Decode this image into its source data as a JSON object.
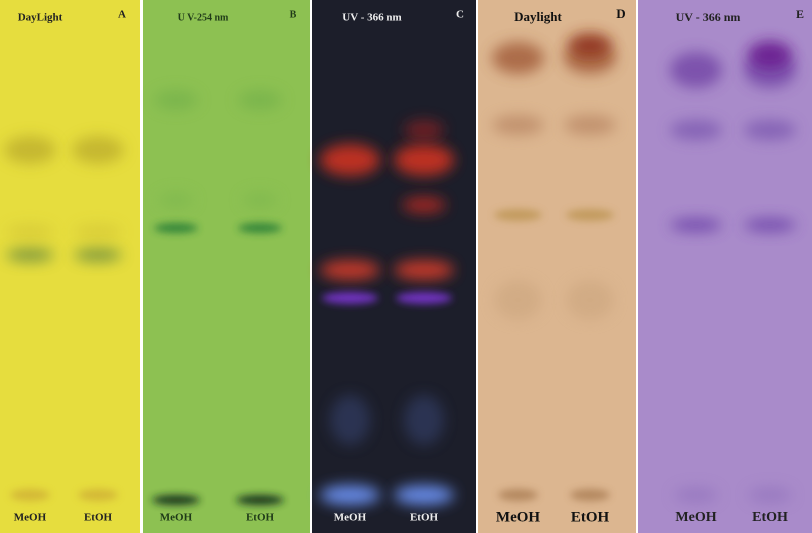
{
  "panels": [
    {
      "title": "DayLight",
      "letter": "A",
      "lanes": [
        "MeOH",
        "EtOH"
      ]
    },
    {
      "title": "U V-254 nm",
      "letter": "B",
      "lanes": [
        "MeOH",
        "EtOH"
      ]
    },
    {
      "title": "UV - 366 nm",
      "letter": "C",
      "lanes": [
        "MeOH",
        "EtOH"
      ]
    },
    {
      "title": "Daylight",
      "letter": "D",
      "lanes": [
        "MeOH",
        "EtOH"
      ]
    },
    {
      "title": "UV - 366 nm",
      "letter": "E",
      "lanes": [
        "MeOH",
        "EtOH"
      ]
    }
  ]
}
